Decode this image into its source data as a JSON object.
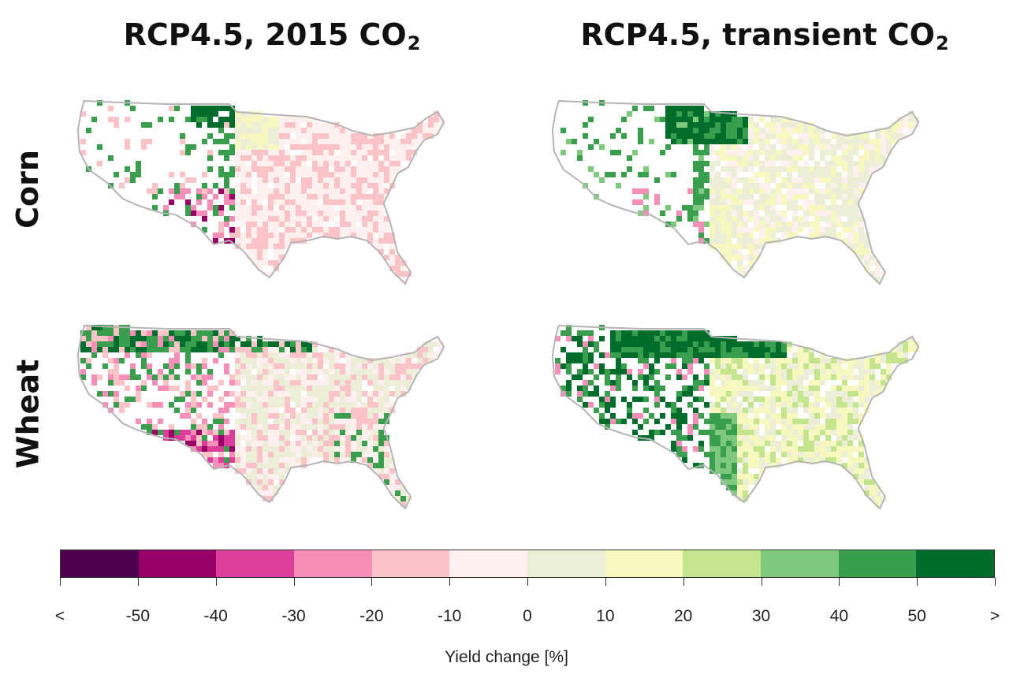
{
  "titles": {
    "left": {
      "text": "RCP4.5, 2015 CO",
      "sub": "2"
    },
    "right": {
      "text": "RCP4.5, transient CO",
      "sub": "2"
    }
  },
  "rows": {
    "corn": "Corn",
    "wheat": "Wheat"
  },
  "legend": {
    "title": "Yield change [%]",
    "labels": [
      "<",
      "-50",
      "-40",
      "-30",
      "-20",
      "-10",
      "0",
      "10",
      "20",
      "30",
      "40",
      "50",
      ">"
    ],
    "colors": [
      "#4d004b",
      "#990066",
      "#dd3e9b",
      "#f58fb8",
      "#f9c3c8",
      "#fdf0ee",
      "#edeed7",
      "#f6f8c0",
      "#c4e58e",
      "#7fc97f",
      "#3a9e4f",
      "#006d2c"
    ]
  },
  "panels": [
    {
      "crop": "Corn",
      "scenario": "RCP4.5, 2015 CO2"
    },
    {
      "crop": "Corn",
      "scenario": "RCP4.5, transient CO2"
    },
    {
      "crop": "Wheat",
      "scenario": "RCP4.5, 2015 CO2"
    },
    {
      "crop": "Wheat",
      "scenario": "RCP4.5, transient CO2"
    }
  ]
}
